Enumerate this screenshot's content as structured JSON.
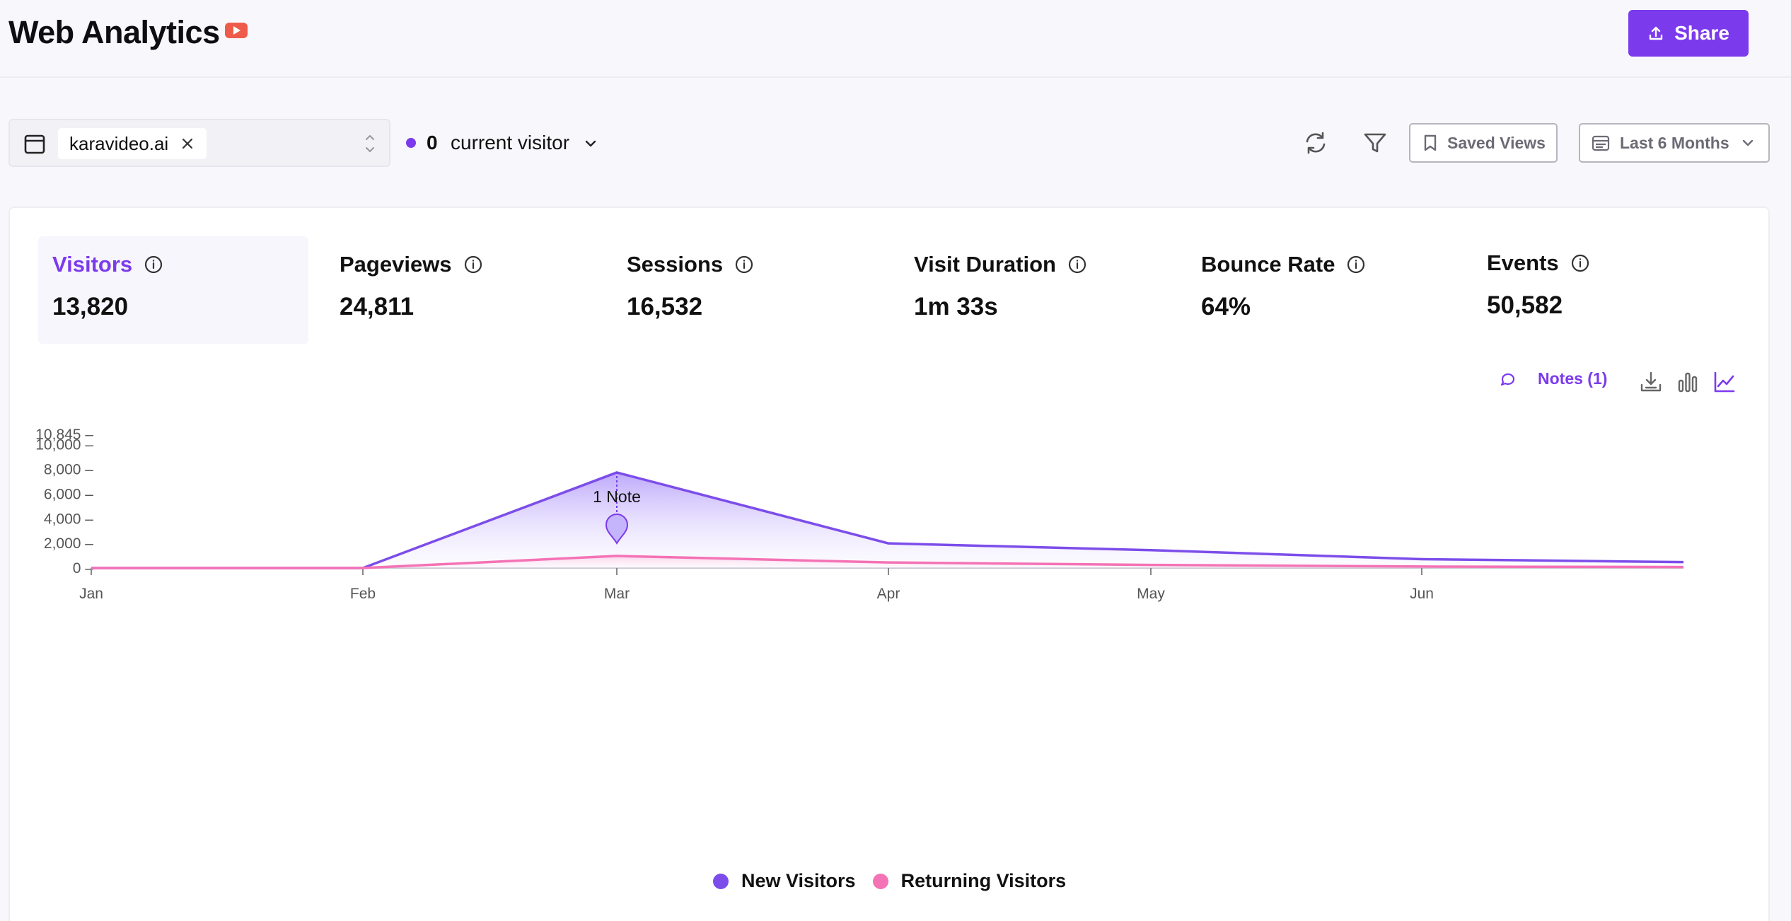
{
  "header": {
    "title": "Web Analytics",
    "brand_icon": "youtube-icon",
    "share_label": "Share"
  },
  "filters": {
    "site": "karavideo.ai",
    "current_visitors": "0",
    "current_visitors_label": "current visitor",
    "saved_views_label": "Saved Views",
    "date_range_label": "Last 6 Months"
  },
  "metrics": [
    {
      "label": "Visitors",
      "value": "13,820",
      "active": true
    },
    {
      "label": "Pageviews",
      "value": "24,811"
    },
    {
      "label": "Sessions",
      "value": "16,532"
    },
    {
      "label": "Visit Duration",
      "value": "1m 33s"
    },
    {
      "label": "Bounce Rate",
      "value": "64%"
    },
    {
      "label": "Events",
      "value": "50,582"
    }
  ],
  "chart_tools": {
    "notes_label": "Notes (1)"
  },
  "colors": {
    "accent": "#7c3aed",
    "new_visitors": "#7c4dea",
    "returning_visitors": "#f472b6"
  },
  "chart_data": {
    "type": "area",
    "x": [
      "Jan",
      "Feb",
      "Mar",
      "Apr",
      "May",
      "Jun",
      ""
    ],
    "x_tick_labels": [
      "Jan",
      "Feb",
      "Mar",
      "Apr",
      "May",
      "Jun"
    ],
    "y_tick_labels": [
      "10,845",
      "10,000",
      "8,000",
      "6,000",
      "4,000",
      "2,000",
      "0"
    ],
    "ylim": [
      0,
      10845
    ],
    "series": [
      {
        "name": "New Visitors",
        "values": [
          0,
          0,
          7750,
          2000,
          1450,
          720,
          480
        ]
      },
      {
        "name": "Returning Visitors",
        "values": [
          0,
          0,
          980,
          450,
          250,
          120,
          80
        ]
      }
    ],
    "annotations": [
      {
        "x": "Mar",
        "label": "1 Note"
      }
    ]
  }
}
